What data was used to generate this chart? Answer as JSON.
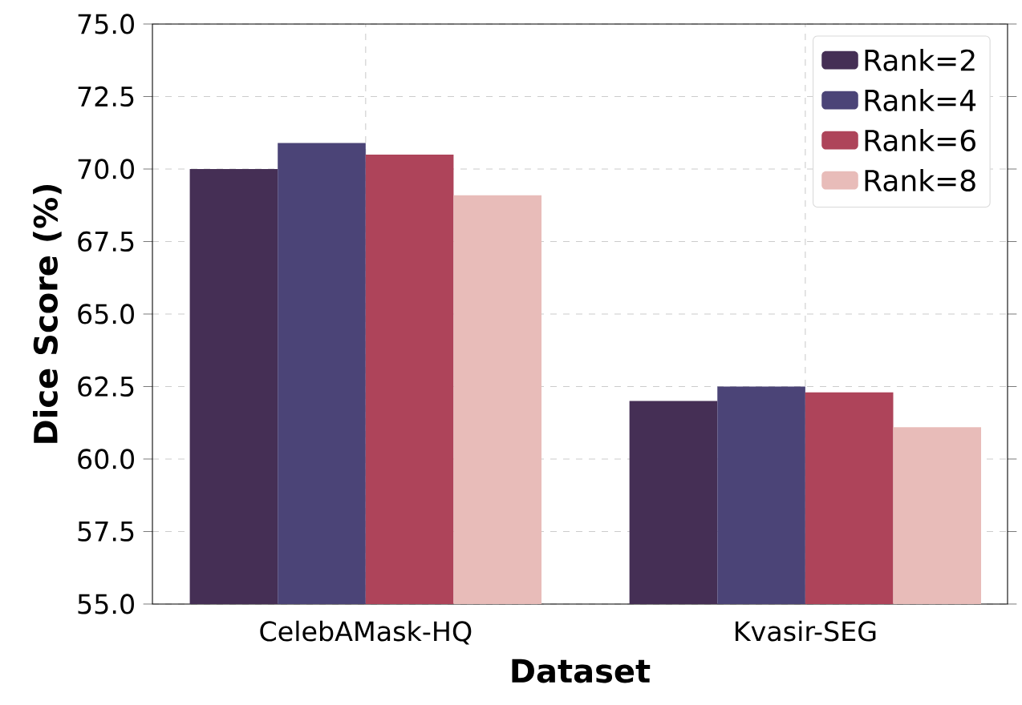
{
  "chart_data": {
    "type": "bar",
    "xlabel": "Dataset",
    "ylabel": "Dice Score (%)",
    "categories": [
      "CelebAMask-HQ",
      "Kvasir-SEG"
    ],
    "series": [
      {
        "name": "Rank=2",
        "color": "#452f55",
        "values": [
          70.0,
          62.0
        ]
      },
      {
        "name": "Rank=4",
        "color": "#4b4477",
        "values": [
          70.9,
          62.5
        ]
      },
      {
        "name": "Rank=6",
        "color": "#ae445a",
        "values": [
          70.5,
          62.3
        ]
      },
      {
        "name": "Rank=8",
        "color": "#e8bcb9",
        "values": [
          69.1,
          61.1
        ]
      }
    ],
    "ylim": [
      55,
      75
    ],
    "yticks": [
      {
        "value": 55,
        "label": "55.0"
      },
      {
        "value": 57.5,
        "label": "57.5"
      },
      {
        "value": 60,
        "label": "60.0"
      },
      {
        "value": 62.5,
        "label": "62.5"
      },
      {
        "value": 65,
        "label": "65.0"
      },
      {
        "value": 67.5,
        "label": "67.5"
      },
      {
        "value": 70,
        "label": "70.0"
      },
      {
        "value": 72.5,
        "label": "72.5"
      },
      {
        "value": 75,
        "label": "75.0"
      }
    ],
    "grid": true,
    "legend": "top right"
  }
}
